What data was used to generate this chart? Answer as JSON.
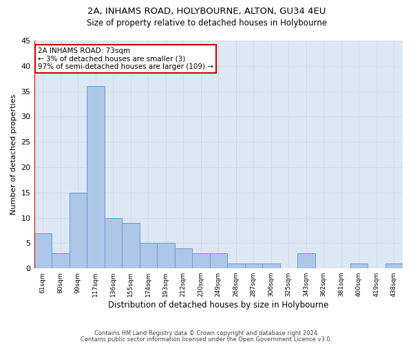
{
  "title": "2A, INHAMS ROAD, HOLYBOURNE, ALTON, GU34 4EU",
  "subtitle": "Size of property relative to detached houses in Holybourne",
  "xlabel": "Distribution of detached houses by size in Holybourne",
  "ylabel": "Number of detached properties",
  "categories": [
    "61sqm",
    "80sqm",
    "99sqm",
    "117sqm",
    "136sqm",
    "155sqm",
    "174sqm",
    "193sqm",
    "212sqm",
    "230sqm",
    "249sqm",
    "268sqm",
    "287sqm",
    "306sqm",
    "325sqm",
    "343sqm",
    "362sqm",
    "381sqm",
    "400sqm",
    "419sqm",
    "438sqm"
  ],
  "values": [
    7,
    3,
    15,
    36,
    10,
    9,
    5,
    5,
    4,
    3,
    3,
    1,
    1,
    1,
    0,
    3,
    0,
    0,
    1,
    0,
    1
  ],
  "bar_color": "#aec6e8",
  "bar_edge_color": "#5a9fd4",
  "annotation_title": "2A INHAMS ROAD: 73sqm",
  "annotation_line1": "← 3% of detached houses are smaller (3)",
  "annotation_line2": "97% of semi-detached houses are larger (109) →",
  "annotation_box_color": "#ffffff",
  "annotation_border_color": "#cc0000",
  "vline_color": "#cc0000",
  "ylim": [
    0,
    45
  ],
  "yticks": [
    0,
    5,
    10,
    15,
    20,
    25,
    30,
    35,
    40,
    45
  ],
  "background_color": "#ffffff",
  "grid_color": "#d0d8e8",
  "footer1": "Contains HM Land Registry data © Crown copyright and database right 2024.",
  "footer2": "Contains public sector information licensed under the Open Government Licence v3.0."
}
